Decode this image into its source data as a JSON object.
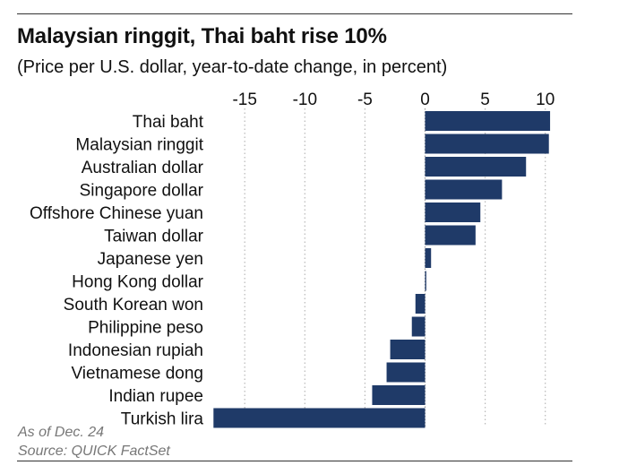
{
  "title": "Malaysian ringgit, Thai baht rise 10%",
  "subtitle": "(Price per U.S. dollar, year-to-date change, in percent)",
  "note": "As of Dec. 24",
  "source": "Source: QUICK FactSet",
  "colors": {
    "bar": "#1f3a68",
    "grid": "#b8b8b8",
    "zero": "#9a9a9a"
  },
  "chart_data": {
    "type": "bar",
    "orientation": "horizontal",
    "title": "Malaysian ringgit, Thai baht rise 10%",
    "subtitle": "(Price per U.S. dollar, year-to-date change, in percent)",
    "xlabel": "",
    "ylabel": "",
    "xlim": [
      -17.5,
      11.5
    ],
    "xticks": [
      -15,
      -10,
      -5,
      0,
      5,
      10
    ],
    "xtick_labels": [
      "-15",
      "-10",
      "-5",
      "0",
      "5",
      "10"
    ],
    "grid": true,
    "categories": [
      "Thai baht",
      "Malaysian ringgit",
      "Australian dollar",
      "Singapore dollar",
      "Offshore Chinese yuan",
      "Taiwan dollar",
      "Japanese yen",
      "Hong Kong dollar",
      "South Korean won",
      "Philippine peso",
      "Indonesian rupiah",
      "Vietnamese dong",
      "Indian rupee",
      "Turkish lira"
    ],
    "values": [
      10.4,
      10.3,
      8.4,
      6.4,
      4.6,
      4.2,
      0.5,
      0.1,
      -0.8,
      -1.1,
      -2.9,
      -3.2,
      -4.4,
      -17.6
    ]
  }
}
